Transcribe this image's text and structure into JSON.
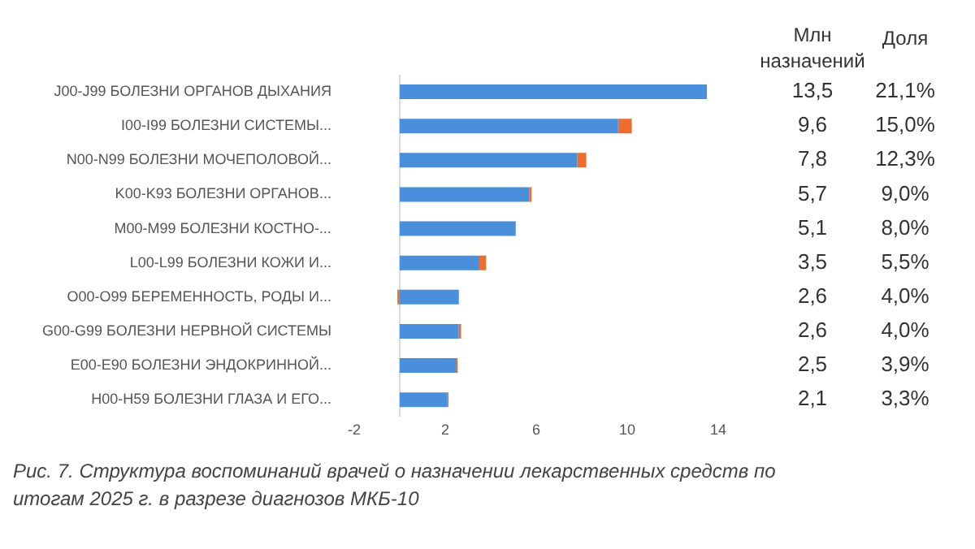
{
  "chart_data": {
    "type": "bar",
    "orientation": "horizontal",
    "stacked": true,
    "categories": [
      "J00-J99 БОЛЕЗНИ ОРГАНОВ ДЫХАНИЯ",
      "I00-I99 БОЛЕЗНИ СИСТЕМЫ...",
      "N00-N99 БОЛЕЗНИ МОЧЕПОЛОВОЙ...",
      "K00-K93 БОЛЕЗНИ ОРГАНОВ...",
      "M00-M99 БОЛЕЗНИ КОСТНО-...",
      "L00-L99 БОЛЕЗНИ КОЖИ И...",
      "O00-O99 БЕРЕМЕННОСТЬ, РОДЫ И...",
      "G00-G99 БОЛЕЗНИ НЕРВНОЙ СИСТЕМЫ",
      "E00-E90 БОЛЕЗНИ ЭНДОКРИННОЙ...",
      "H00-H59 БОЛЕЗНИ ГЛАЗА И ЕГО..."
    ],
    "series": [
      {
        "color": "#4a8fdc",
        "values": [
          13.5,
          9.6,
          7.8,
          5.7,
          5.1,
          3.5,
          2.6,
          2.6,
          2.5,
          2.1
        ],
        "value_labels": [
          "13,5",
          "9,6",
          "7,8",
          "5,7",
          "5,1",
          "3,5",
          "2,6",
          "2,6",
          "2,5",
          "2,1"
        ]
      },
      {
        "color": "#ed6d2f",
        "values": [
          null,
          0.6,
          0.4,
          0.1,
          null,
          0.3,
          -0.1,
          0.1,
          0.05,
          0.05
        ]
      }
    ],
    "xlim": [
      -2,
      14
    ],
    "xticks": [
      -2,
      2,
      6,
      10,
      14
    ],
    "grid": false,
    "legend": false,
    "ref_lines": [
      {
        "axis": "x",
        "value": 0,
        "color": "#d9d9d9"
      }
    ],
    "annotations": [
      "Млн назначений",
      "Доля",
      "21,1%",
      "15,0%",
      "12,3%",
      "9,0%",
      "8,0%",
      "5,5%",
      "4,0%",
      "4,0%",
      "3,9%",
      "3,3%",
      "Рис. 7. Структура воспоминаний врачей о назначении лекарственных средств по итогам 2025 г. в разрезе диагнозов МКБ-10"
    ]
  }
}
